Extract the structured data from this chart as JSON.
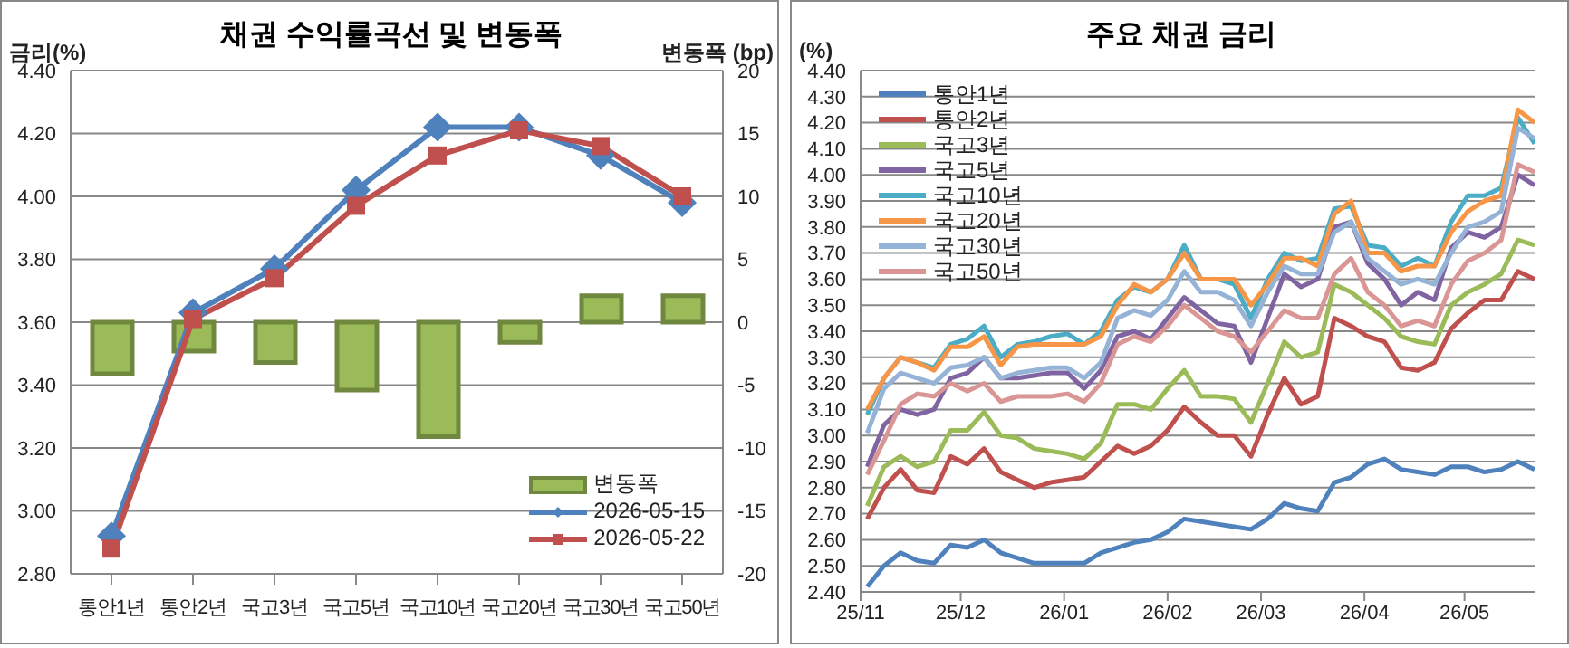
{
  "chart_data": [
    {
      "type": "line",
      "title": "채권 수익률곡선 및 변동폭",
      "ylabel": "금리(%)",
      "y2label": "변동폭 (bp)",
      "categories": [
        "통안1년",
        "통안2년",
        "국고3년",
        "국고5년",
        "국고10년",
        "국고20년",
        "국고30년",
        "국고50년"
      ],
      "series": [
        {
          "name": "변동폭",
          "type": "bar",
          "axis": "y2",
          "color": "#9bbb59",
          "values": [
            -4.1,
            -2.3,
            -3.2,
            -5.4,
            -9.1,
            -1.6,
            2.1,
            2.1
          ]
        },
        {
          "name": "2026-05-15",
          "color": "#4f81bd",
          "marker": "diamond",
          "values": [
            2.92,
            3.63,
            3.77,
            4.02,
            4.22,
            4.22,
            4.13,
            3.98
          ]
        },
        {
          "name": "2026-05-22",
          "color": "#c0504d",
          "marker": "square",
          "values": [
            2.88,
            3.61,
            3.74,
            3.97,
            4.13,
            4.21,
            4.16,
            4.0
          ]
        }
      ],
      "ylim": [
        2.8,
        4.4
      ],
      "yticks": [
        {
          "value": 2.8,
          "label": "2.80"
        },
        {
          "value": 3.0,
          "label": "3.00"
        },
        {
          "value": 3.2,
          "label": "3.20"
        },
        {
          "value": 3.4,
          "label": "3.40"
        },
        {
          "value": 3.6,
          "label": "3.60"
        },
        {
          "value": 3.8,
          "label": "3.80"
        },
        {
          "value": 4.0,
          "label": "4.00"
        },
        {
          "value": 4.2,
          "label": "4.20"
        },
        {
          "value": 4.4,
          "label": "4.40"
        }
      ],
      "y2lim": [
        -20,
        20
      ],
      "y2ticks": [
        -20,
        -15,
        -10,
        -5,
        0,
        5,
        10,
        15,
        20
      ],
      "grid": "y",
      "legend": "bottom right"
    },
    {
      "type": "line",
      "title": "주요 채권 금리",
      "ylabel": "(%)",
      "x": [
        "2025-11-03",
        "2025-11-08",
        "2025-11-13",
        "2025-11-18",
        "2025-11-23",
        "2025-11-28",
        "2025-12-03",
        "2025-12-08",
        "2025-12-13",
        "2025-12-18",
        "2025-12-23",
        "2025-12-28",
        "2026-01-02",
        "2026-01-07",
        "2026-01-12",
        "2026-01-17",
        "2026-01-22",
        "2026-01-27",
        "2026-02-01",
        "2026-02-06",
        "2026-02-11",
        "2026-02-16",
        "2026-02-21",
        "2026-02-26",
        "2026-03-03",
        "2026-03-08",
        "2026-03-13",
        "2026-03-18",
        "2026-03-23",
        "2026-03-28",
        "2026-04-02",
        "2026-04-07",
        "2026-04-12",
        "2026-04-17",
        "2026-04-22",
        "2026-04-27",
        "2026-05-02",
        "2026-05-07",
        "2026-05-12",
        "2026-05-17",
        "2026-05-22"
      ],
      "series": [
        {
          "name": "통안1년",
          "color": "#4f81bd",
          "values": [
            2.42,
            2.5,
            2.55,
            2.52,
            2.51,
            2.58,
            2.57,
            2.6,
            2.55,
            2.53,
            2.51,
            2.51,
            2.51,
            2.51,
            2.55,
            2.57,
            2.59,
            2.6,
            2.63,
            2.68,
            2.67,
            2.66,
            2.65,
            2.64,
            2.68,
            2.74,
            2.72,
            2.71,
            2.82,
            2.84,
            2.89,
            2.91,
            2.87,
            2.86,
            2.85,
            2.88,
            2.88,
            2.86,
            2.87,
            2.9,
            2.87
          ]
        },
        {
          "name": "통안2년",
          "color": "#c0504d",
          "values": [
            2.68,
            2.8,
            2.87,
            2.79,
            2.78,
            2.92,
            2.89,
            2.95,
            2.86,
            2.83,
            2.8,
            2.82,
            2.83,
            2.84,
            2.9,
            2.96,
            2.93,
            2.96,
            3.02,
            3.11,
            3.05,
            3.0,
            3.0,
            2.92,
            3.08,
            3.22,
            3.12,
            3.15,
            3.45,
            3.42,
            3.38,
            3.36,
            3.26,
            3.25,
            3.28,
            3.41,
            3.47,
            3.52,
            3.52,
            3.63,
            3.6
          ]
        },
        {
          "name": "국고3년",
          "color": "#9bbb59",
          "values": [
            2.73,
            2.88,
            2.92,
            2.88,
            2.9,
            3.02,
            3.02,
            3.09,
            3.0,
            2.99,
            2.95,
            2.94,
            2.93,
            2.91,
            2.97,
            3.12,
            3.12,
            3.1,
            3.18,
            3.25,
            3.15,
            3.15,
            3.14,
            3.05,
            3.2,
            3.36,
            3.3,
            3.32,
            3.58,
            3.55,
            3.5,
            3.45,
            3.38,
            3.36,
            3.35,
            3.5,
            3.55,
            3.58,
            3.62,
            3.75,
            3.73
          ]
        },
        {
          "name": "국고5년",
          "color": "#8064a2",
          "values": [
            2.88,
            3.04,
            3.1,
            3.08,
            3.1,
            3.22,
            3.24,
            3.3,
            3.22,
            3.22,
            3.23,
            3.24,
            3.24,
            3.18,
            3.25,
            3.38,
            3.4,
            3.37,
            3.45,
            3.53,
            3.48,
            3.43,
            3.42,
            3.28,
            3.45,
            3.62,
            3.57,
            3.6,
            3.8,
            3.82,
            3.66,
            3.6,
            3.5,
            3.55,
            3.52,
            3.72,
            3.78,
            3.76,
            3.8,
            4.0,
            3.96
          ]
        },
        {
          "name": "국고10년",
          "color": "#4bacc6",
          "values": [
            3.08,
            3.22,
            3.3,
            3.28,
            3.26,
            3.35,
            3.37,
            3.42,
            3.3,
            3.35,
            3.36,
            3.38,
            3.39,
            3.35,
            3.4,
            3.52,
            3.57,
            3.55,
            3.6,
            3.73,
            3.6,
            3.6,
            3.58,
            3.45,
            3.6,
            3.7,
            3.67,
            3.68,
            3.87,
            3.88,
            3.73,
            3.72,
            3.65,
            3.68,
            3.65,
            3.82,
            3.92,
            3.92,
            3.95,
            4.22,
            4.12
          ]
        },
        {
          "name": "국고20년",
          "color": "#f79646",
          "values": [
            3.1,
            3.22,
            3.3,
            3.28,
            3.25,
            3.34,
            3.34,
            3.38,
            3.27,
            3.34,
            3.35,
            3.35,
            3.35,
            3.35,
            3.38,
            3.5,
            3.58,
            3.55,
            3.6,
            3.7,
            3.6,
            3.6,
            3.6,
            3.5,
            3.58,
            3.68,
            3.68,
            3.65,
            3.85,
            3.9,
            3.7,
            3.7,
            3.63,
            3.65,
            3.65,
            3.78,
            3.86,
            3.9,
            3.92,
            4.25,
            4.2
          ]
        },
        {
          "name": "국고30년",
          "color": "#95b3d7",
          "values": [
            3.01,
            3.18,
            3.24,
            3.22,
            3.2,
            3.26,
            3.27,
            3.3,
            3.22,
            3.24,
            3.25,
            3.26,
            3.26,
            3.22,
            3.28,
            3.45,
            3.48,
            3.46,
            3.52,
            3.63,
            3.55,
            3.55,
            3.52,
            3.42,
            3.55,
            3.65,
            3.62,
            3.62,
            3.78,
            3.82,
            3.68,
            3.63,
            3.58,
            3.6,
            3.58,
            3.7,
            3.8,
            3.82,
            3.86,
            4.18,
            4.14
          ]
        },
        {
          "name": "국고50년",
          "color": "#d99694",
          "values": [
            2.85,
            2.98,
            3.12,
            3.16,
            3.15,
            3.2,
            3.17,
            3.2,
            3.13,
            3.15,
            3.15,
            3.15,
            3.16,
            3.13,
            3.2,
            3.35,
            3.38,
            3.36,
            3.42,
            3.5,
            3.45,
            3.4,
            3.38,
            3.32,
            3.4,
            3.48,
            3.45,
            3.45,
            3.62,
            3.68,
            3.55,
            3.5,
            3.42,
            3.44,
            3.42,
            3.58,
            3.67,
            3.7,
            3.75,
            4.04,
            4.01
          ]
        }
      ],
      "xlim": [
        "2025-11-01",
        "2026-05-22"
      ],
      "xticks": [
        {
          "value": "2025-11-01",
          "label": "25/11"
        },
        {
          "value": "2025-12-01",
          "label": "25/12"
        },
        {
          "value": "2026-01-01",
          "label": "26/01"
        },
        {
          "value": "2026-02-01",
          "label": "26/02"
        },
        {
          "value": "2026-03-01",
          "label": "26/03"
        },
        {
          "value": "2026-04-01",
          "label": "26/04"
        },
        {
          "value": "2026-05-01",
          "label": "26/05"
        }
      ],
      "ylim": [
        2.4,
        4.4
      ],
      "yticks": [
        {
          "value": 2.4,
          "label": "2.40"
        },
        {
          "value": 2.5,
          "label": "2.50"
        },
        {
          "value": 2.6,
          "label": "2.60"
        },
        {
          "value": 2.7,
          "label": "2.70"
        },
        {
          "value": 2.8,
          "label": "2.80"
        },
        {
          "value": 2.9,
          "label": "2.90"
        },
        {
          "value": 3.0,
          "label": "3.00"
        },
        {
          "value": 3.1,
          "label": "3.10"
        },
        {
          "value": 3.2,
          "label": "3.20"
        },
        {
          "value": 3.3,
          "label": "3.30"
        },
        {
          "value": 3.4,
          "label": "3.40"
        },
        {
          "value": 3.5,
          "label": "3.50"
        },
        {
          "value": 3.6,
          "label": "3.60"
        },
        {
          "value": 3.7,
          "label": "3.70"
        },
        {
          "value": 3.8,
          "label": "3.80"
        },
        {
          "value": 3.9,
          "label": "3.90"
        },
        {
          "value": 4.0,
          "label": "4.00"
        },
        {
          "value": 4.1,
          "label": "4.10"
        },
        {
          "value": 4.2,
          "label": "4.20"
        },
        {
          "value": 4.3,
          "label": "4.30"
        },
        {
          "value": 4.4,
          "label": "4.40"
        }
      ],
      "grid": "y",
      "legend": "top left"
    }
  ]
}
